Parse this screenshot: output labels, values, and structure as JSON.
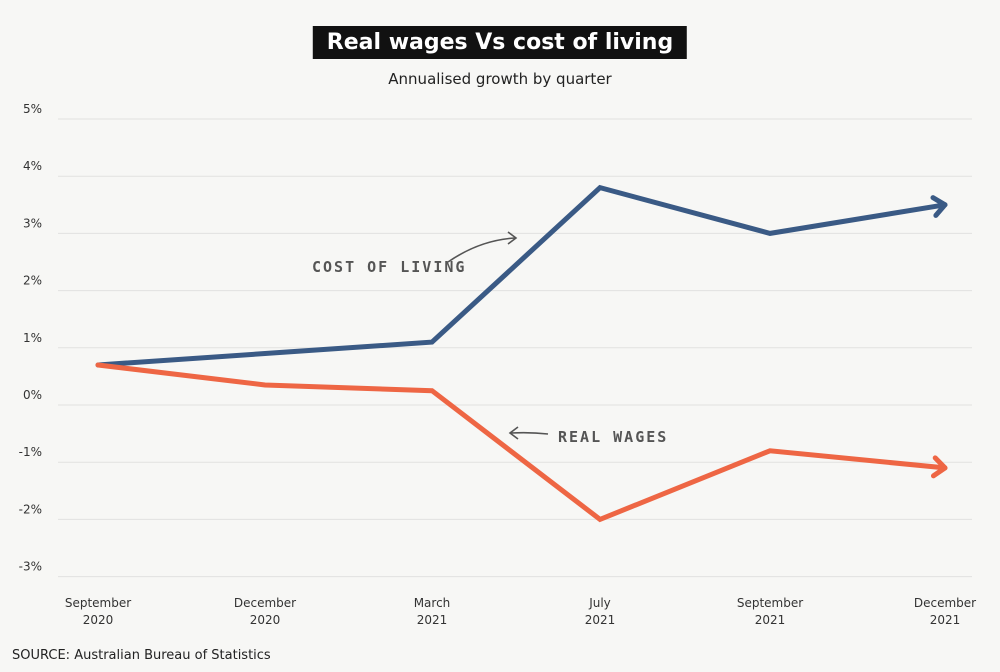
{
  "chart_data": {
    "type": "line",
    "title": "Real wages Vs cost of living",
    "subtitle": "Annualised growth by quarter",
    "categories": [
      [
        "September",
        "2020"
      ],
      [
        "December",
        "2020"
      ],
      [
        "March",
        "2021"
      ],
      [
        "July",
        "2021"
      ],
      [
        "September",
        "2021"
      ],
      [
        "December",
        "2021"
      ]
    ],
    "ylim": [
      -3,
      5
    ],
    "yticks": [
      5,
      4,
      3,
      2,
      1,
      0,
      -1,
      -2,
      -3
    ],
    "ytick_labels": [
      "5%",
      "4%",
      "3%",
      "2%",
      "1%",
      "0%",
      "-1%",
      "-2%",
      "-3%"
    ],
    "grid": true,
    "series": [
      {
        "name": "COST OF LIVING",
        "color": "#3a5a85",
        "values": [
          0.7,
          0.9,
          1.1,
          3.8,
          3.0,
          3.5
        ]
      },
      {
        "name": "REAL WAGES",
        "color": "#ee6644",
        "values": [
          0.7,
          0.35,
          0.25,
          -2.0,
          -0.8,
          -1.1
        ]
      }
    ],
    "negative_tick_color": "#ee6644",
    "source": "SOURCE: Australian Bureau of Statistics"
  }
}
